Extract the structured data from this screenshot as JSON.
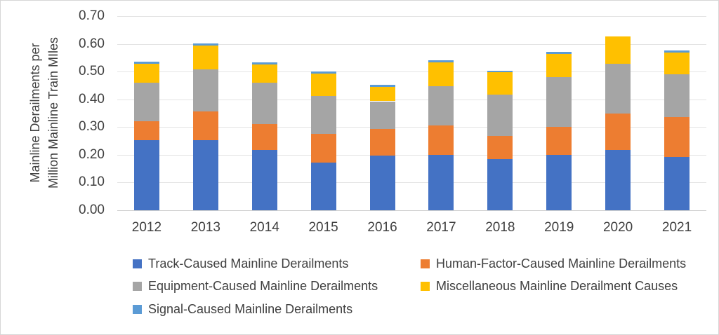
{
  "figure": {
    "background": "#ffffff",
    "border_color": "#d6d6d6",
    "text_color": "#404040",
    "gridline_color": "#e4e4e4",
    "axis_line_color": "#cfcfcf"
  },
  "chart_data": {
    "type": "bar",
    "stacked": true,
    "title": "",
    "xlabel": "",
    "ylabel": "Mainline Derailments per\nMillion Mainline Train MIles",
    "ylim": [
      0,
      0.7
    ],
    "yticks": [
      "0.00",
      "0.10",
      "0.20",
      "0.30",
      "0.40",
      "0.50",
      "0.60",
      "0.70"
    ],
    "grid": true,
    "legend_position": "bottom",
    "legend_columns": 2,
    "categories": [
      "2012",
      "2013",
      "2014",
      "2015",
      "2016",
      "2017",
      "2018",
      "2019",
      "2020",
      "2021"
    ],
    "series": [
      {
        "key": "track",
        "name": "Track-Caused Mainline Derailments",
        "color": "#4472C4",
        "values": [
          0.253,
          0.253,
          0.217,
          0.173,
          0.196,
          0.199,
          0.185,
          0.2,
          0.217,
          0.192
        ]
      },
      {
        "key": "human-factor",
        "name": "Human-Factor-Caused Mainline Derailments",
        "color": "#ED7D31",
        "values": [
          0.068,
          0.104,
          0.095,
          0.102,
          0.096,
          0.108,
          0.084,
          0.101,
          0.133,
          0.144
        ]
      },
      {
        "key": "equipment",
        "name": "Equipment-Caused Mainline Derailments",
        "color": "#A5A5A5",
        "values": [
          0.14,
          0.152,
          0.148,
          0.137,
          0.101,
          0.141,
          0.149,
          0.179,
          0.177,
          0.154
        ]
      },
      {
        "key": "miscellaneous",
        "name": "Miscellaneous Mainline Derailment Causes",
        "color": "#FFC000",
        "values": [
          0.067,
          0.085,
          0.065,
          0.082,
          0.053,
          0.086,
          0.079,
          0.084,
          0.1,
          0.079
        ]
      },
      {
        "key": "signal",
        "name": "Signal-Caused Mainline Derailments",
        "color": "#5B9BD5",
        "values": [
          0.007,
          0.007,
          0.007,
          0.006,
          0.006,
          0.007,
          0.007,
          0.007,
          0.0,
          0.007
        ]
      }
    ]
  }
}
